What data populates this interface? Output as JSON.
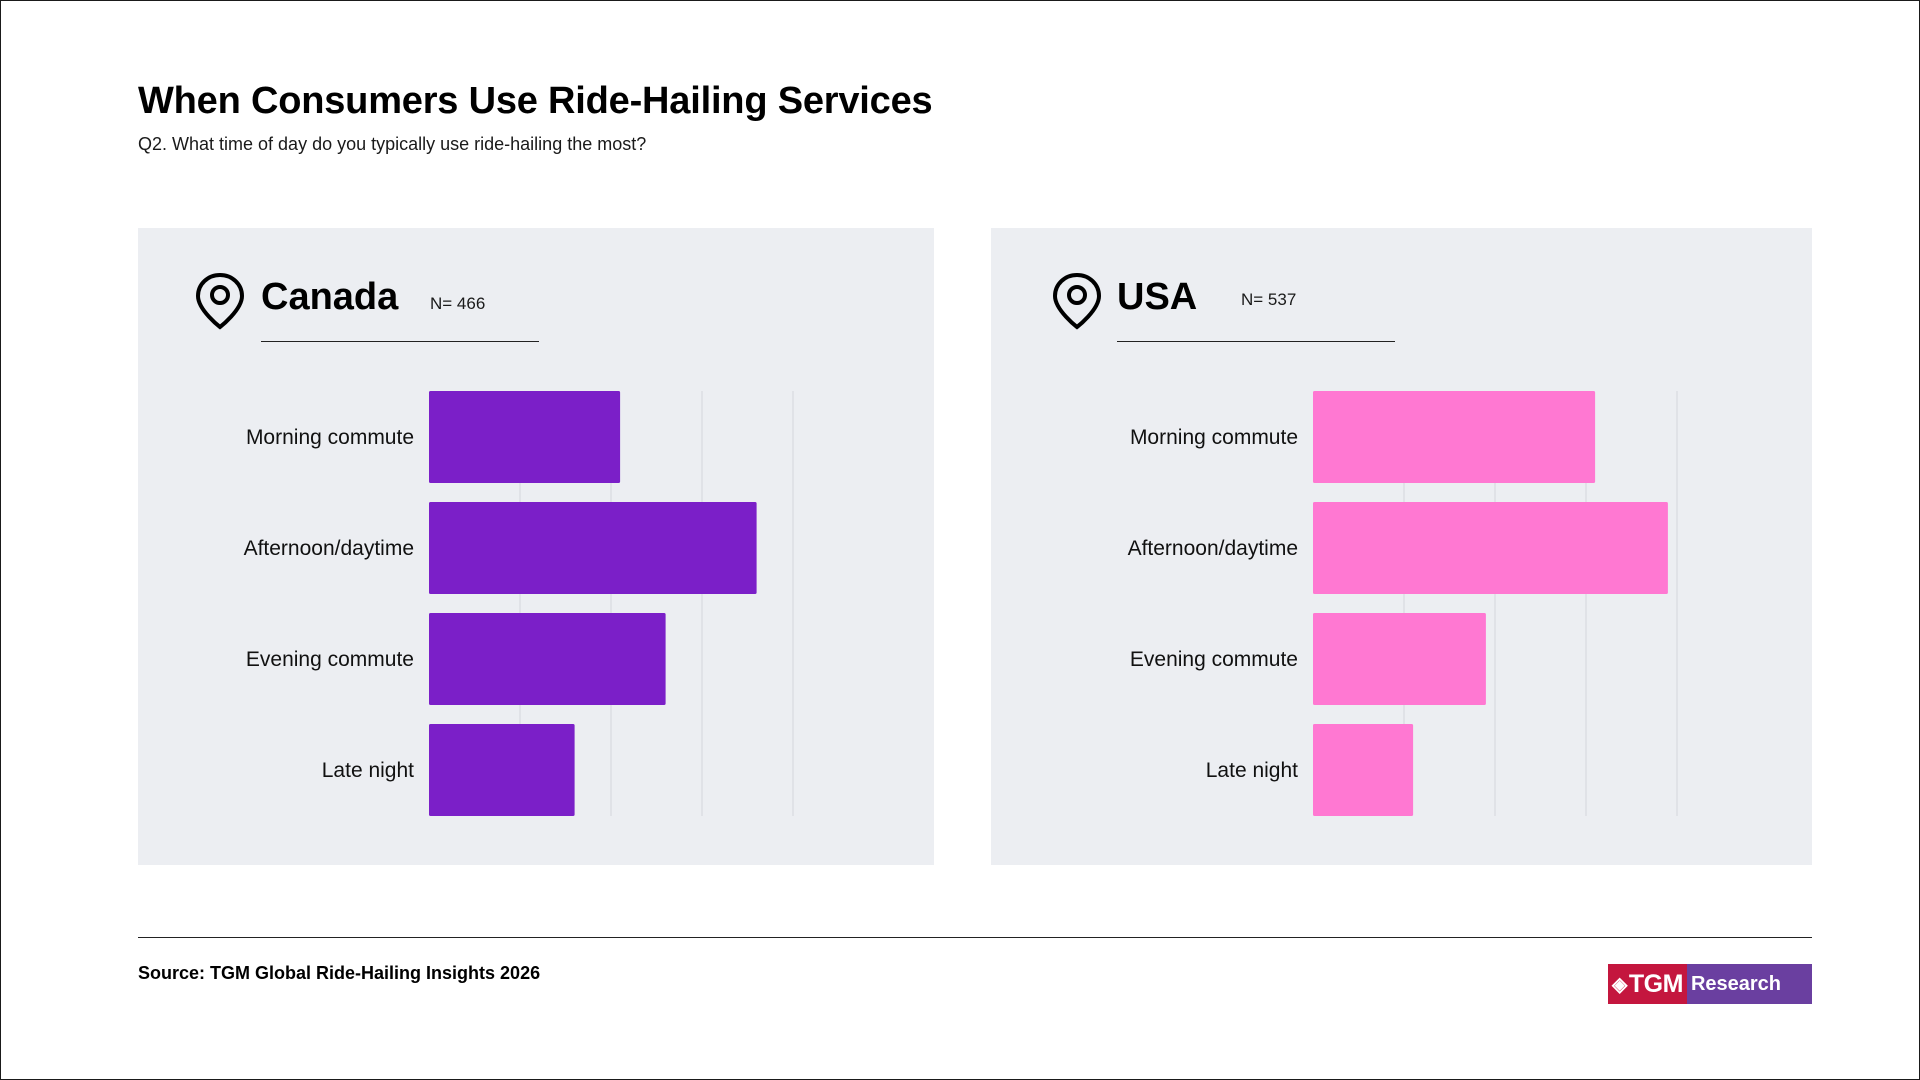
{
  "header": {
    "title": "When Consumers Use Ride-Hailing Services",
    "subtitle": "Q2. What time of day do you typically use ride-hailing the most?"
  },
  "footer": {
    "source_prefix": "Source:",
    "source_name": "TGM Global Ride-Hailing Insights 2026",
    "logo_left": "TGM",
    "logo_right": "Research"
  },
  "panels": {
    "canada": {
      "country": "Canada",
      "n_label": "N= 466",
      "icon": "location-pin-icon"
    },
    "usa": {
      "country": "USA",
      "n_label": "N= 537",
      "icon": "location-pin-icon"
    }
  },
  "chart_data": [
    {
      "type": "bar",
      "orientation": "horizontal",
      "categories": [
        "Morning commute",
        "Afternoon/daytime",
        "Evening commute",
        "Late night"
      ],
      "values": [
        21,
        36,
        26,
        16
      ],
      "xlim": [
        0,
        40
      ],
      "grid": true,
      "color": "#7b1fc8",
      "title": "Canada"
    },
    {
      "type": "bar",
      "orientation": "horizontal",
      "categories": [
        "Morning commute",
        "Afternoon/daytime",
        "Evening commute",
        "Late night"
      ],
      "values": [
        31,
        39,
        19,
        11
      ],
      "xlim": [
        0,
        40
      ],
      "grid": true,
      "color": "#ff78d2",
      "title": "USA"
    }
  ]
}
